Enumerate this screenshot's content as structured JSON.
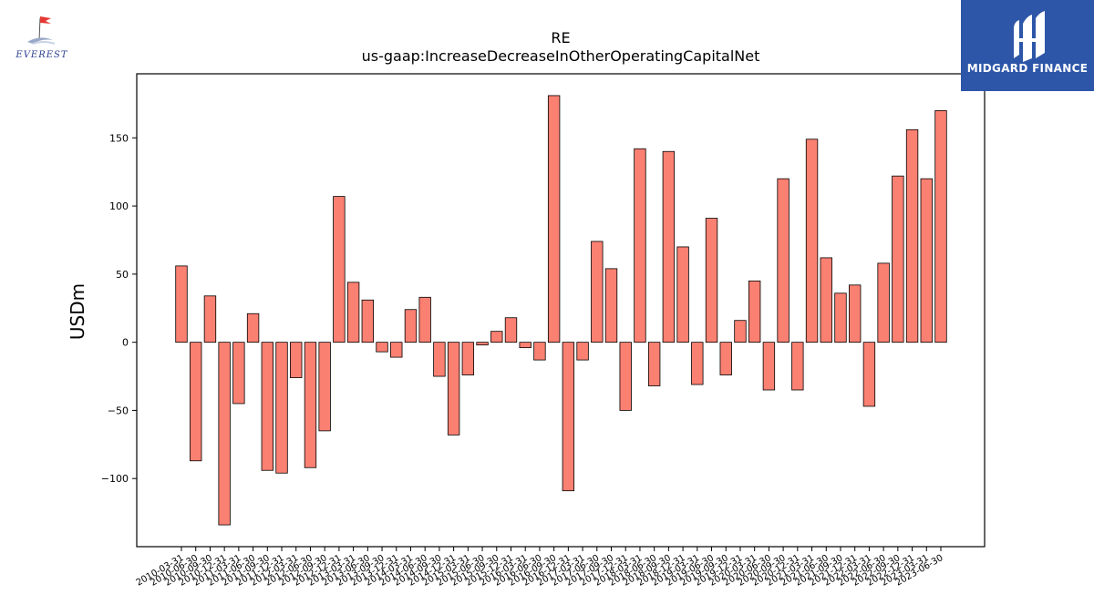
{
  "logos": {
    "left_brand": "EVEREST",
    "right_brand": "MIDGARD FINANCE",
    "right_bg_color": "#2d56a8",
    "left_brand_color": "#2a3d8f"
  },
  "chart_data": {
    "type": "bar",
    "title": "RE",
    "subtitle": "us-gaap:IncreaseDecreaseInOtherOperatingCapitalNet",
    "xlabel": "",
    "ylabel": "USDm",
    "ylim": [
      -150,
      197
    ],
    "yticks": [
      -100,
      -50,
      0,
      50,
      100,
      150
    ],
    "ytick_labels": [
      "−100",
      "−50",
      "0",
      "50",
      "100",
      "150"
    ],
    "grid": false,
    "bar_color": "#fa8072",
    "bar_edge_color": "#000000",
    "categories": [
      "2010-03-31",
      "2010-06-30",
      "2010-09-30",
      "2010-12-31",
      "2011-03-31",
      "2011-06-30",
      "2011-09-30",
      "2011-12-31",
      "2012-03-31",
      "2012-06-30",
      "2012-09-30",
      "2012-12-31",
      "2013-03-31",
      "2013-06-30",
      "2013-09-30",
      "2013-12-31",
      "2014-03-31",
      "2014-06-30",
      "2014-09-30",
      "2014-12-31",
      "2015-03-31",
      "2015-06-30",
      "2015-09-30",
      "2015-12-31",
      "2016-03-31",
      "2016-06-30",
      "2016-09-30",
      "2016-12-31",
      "2017-03-31",
      "2017-06-30",
      "2017-09-30",
      "2017-12-31",
      "2018-03-31",
      "2018-06-30",
      "2018-09-30",
      "2018-12-31",
      "2019-03-31",
      "2019-06-30",
      "2019-09-30",
      "2019-12-31",
      "2020-03-31",
      "2020-06-30",
      "2020-09-30",
      "2020-12-31",
      "2021-03-31",
      "2021-06-30",
      "2021-09-30",
      "2021-12-31",
      "2022-03-31",
      "2022-06-30",
      "2022-09-30",
      "2022-12-31",
      "2023-03-31",
      "2023-06-30"
    ],
    "values": [
      56,
      -87,
      34,
      -134,
      -45,
      21,
      -94,
      -96,
      -26,
      -92,
      -65,
      107,
      44,
      31,
      -7,
      -11,
      24,
      33,
      -25,
      -68,
      -24,
      -2,
      8,
      18,
      -4,
      -13,
      181,
      -109,
      -13,
      74,
      54,
      -50,
      142,
      -32,
      140,
      70,
      -31,
      91,
      -24,
      16,
      45,
      -35,
      120,
      -35,
      149,
      62,
      36,
      42,
      -47,
      58,
      122,
      156,
      120,
      170
    ],
    "value_unit": "USDm"
  }
}
